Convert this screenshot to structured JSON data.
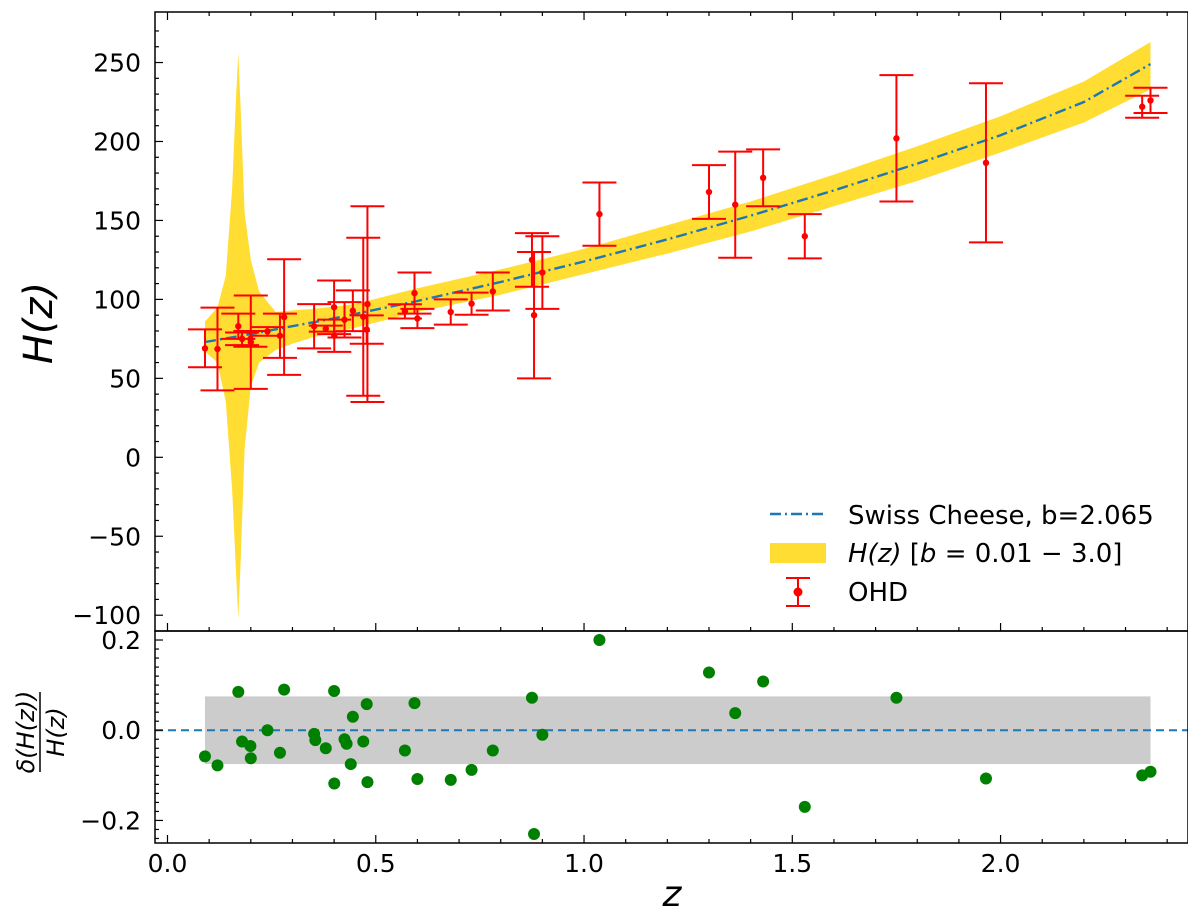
{
  "chart_data": [
    {
      "type": "line",
      "panel": "top",
      "xlabel": "",
      "ylabel": "H(z)",
      "xlim": [
        -0.03,
        2.45
      ],
      "ylim": [
        -110,
        282
      ],
      "yticks": [
        -100,
        -50,
        0,
        50,
        100,
        150,
        200,
        250
      ],
      "ytick_labels": [
        "−100",
        "−50",
        "0",
        "50",
        "100",
        "150",
        "200",
        "250"
      ],
      "legend_position": "bottom-right",
      "legend": [
        {
          "label": "Swiss Cheese, b=2.065",
          "kind": "line"
        },
        {
          "label_parts": [
            "H(z)",
            " [",
            "b",
            " = 0.01 − 3.0]"
          ],
          "kind": "band"
        },
        {
          "label": "OHD",
          "kind": "errorbar"
        }
      ],
      "colors": {
        "model": "#1f77b4",
        "band": "#ffdd33",
        "ohd": "#ff0000"
      },
      "model_line": {
        "name": "Swiss Cheese, b=2.065",
        "x": [
          0.09,
          0.2,
          0.4,
          0.6,
          0.8,
          1.0,
          1.2,
          1.4,
          1.6,
          1.8,
          2.0,
          2.2,
          2.36
        ],
        "y": [
          73,
          78,
          88,
          99,
          111,
          124,
          138,
          153,
          169,
          186,
          204,
          225,
          249
        ]
      },
      "band": {
        "x": [
          0.09,
          0.12,
          0.14,
          0.155,
          0.165,
          0.17,
          0.175,
          0.185,
          0.2,
          0.22,
          0.26,
          0.3,
          0.35,
          0.45,
          0.6,
          0.8,
          1.0,
          1.2,
          1.4,
          1.6,
          1.8,
          2.0,
          2.2,
          2.36
        ],
        "upper": [
          86,
          95,
          115,
          170,
          230,
          256,
          225,
          155,
          125,
          105,
          92,
          93,
          94,
          97,
          107,
          119,
          132,
          147,
          162,
          179,
          197,
          216,
          238,
          263
        ],
        "lower": [
          67,
          60,
          35,
          -20,
          -75,
          -102,
          -70,
          5,
          45,
          60,
          68,
          72,
          76,
          82,
          92,
          103,
          116,
          129,
          143,
          159,
          175,
          193,
          212,
          233
        ]
      },
      "series": [
        {
          "name": "OHD",
          "points": [
            {
              "x": 0.09,
              "y": 69,
              "err": 12
            },
            {
              "x": 0.12,
              "y": 68.6,
              "err": 26.2
            },
            {
              "x": 0.17,
              "y": 83,
              "err": 8
            },
            {
              "x": 0.179,
              "y": 75,
              "err": 4
            },
            {
              "x": 0.199,
              "y": 75,
              "err": 5
            },
            {
              "x": 0.2,
              "y": 72.9,
              "err": 29.6
            },
            {
              "x": 0.24,
              "y": 79.7,
              "err": 2.7
            },
            {
              "x": 0.27,
              "y": 77,
              "err": 14
            },
            {
              "x": 0.28,
              "y": 88.8,
              "err": 36.6
            },
            {
              "x": 0.352,
              "y": 83,
              "err": 14
            },
            {
              "x": 0.38,
              "y": 81.5,
              "err": 1.9
            },
            {
              "x": 0.4,
              "y": 95,
              "err": 17
            },
            {
              "x": 0.4004,
              "y": 77,
              "err": 10.2
            },
            {
              "x": 0.425,
              "y": 87.1,
              "err": 11.2
            },
            {
              "x": 0.445,
              "y": 92.8,
              "err": 12.9
            },
            {
              "x": 0.47,
              "y": 89,
              "err": 50
            },
            {
              "x": 0.4783,
              "y": 80.9,
              "err": 9
            },
            {
              "x": 0.48,
              "y": 97,
              "err": 62
            },
            {
              "x": 0.57,
              "y": 92.4,
              "err": 4.5
            },
            {
              "x": 0.593,
              "y": 104,
              "err": 13
            },
            {
              "x": 0.6,
              "y": 87.9,
              "err": 6.1
            },
            {
              "x": 0.68,
              "y": 92,
              "err": 8
            },
            {
              "x": 0.73,
              "y": 97.3,
              "err": 7
            },
            {
              "x": 0.781,
              "y": 105,
              "err": 12
            },
            {
              "x": 0.875,
              "y": 125,
              "err": 17
            },
            {
              "x": 0.88,
              "y": 90,
              "err": 40
            },
            {
              "x": 0.9,
              "y": 117,
              "err": 23
            },
            {
              "x": 1.037,
              "y": 154,
              "err": 20
            },
            {
              "x": 1.3,
              "y": 168,
              "err": 17
            },
            {
              "x": 1.363,
              "y": 160,
              "err": 33.6
            },
            {
              "x": 1.43,
              "y": 177,
              "err": 18
            },
            {
              "x": 1.53,
              "y": 140,
              "err": 14
            },
            {
              "x": 1.75,
              "y": 202,
              "err": 40
            },
            {
              "x": 1.965,
              "y": 186.5,
              "err": 50.4
            },
            {
              "x": 2.34,
              "y": 222,
              "err": 7
            },
            {
              "x": 2.36,
              "y": 226,
              "err": 8
            }
          ]
        }
      ]
    },
    {
      "type": "scatter",
      "panel": "bottom",
      "xlabel": "z",
      "ylabel": "δ(H(z)) / H(z)",
      "ylabel_parts": {
        "numerator": "δ(H(z))",
        "denominator": "H(z)"
      },
      "xlim": [
        -0.03,
        2.45
      ],
      "ylim": [
        -0.25,
        0.22
      ],
      "xticks": [
        0.0,
        0.5,
        1.0,
        1.5,
        2.0
      ],
      "xtick_labels": [
        "0.0",
        "0.5",
        "1.0",
        "1.5",
        "2.0"
      ],
      "yticks": [
        -0.2,
        0.0,
        0.2
      ],
      "ytick_labels": [
        "−0.2",
        "0.0",
        "0.2"
      ],
      "reference_line": {
        "y": 0.0,
        "style": "dashed",
        "color": "#1f77b4"
      },
      "band": {
        "x": [
          0.09,
          2.36
        ],
        "y": [
          -0.075,
          0.075
        ],
        "color": "#cccccc"
      },
      "colors": {
        "points": "#008000"
      },
      "series": [
        {
          "x": [
            0.09,
            0.12,
            0.17,
            0.179,
            0.199,
            0.2,
            0.24,
            0.27,
            0.28,
            0.352,
            0.355,
            0.38,
            0.4,
            0.4004,
            0.425,
            0.43,
            0.44,
            0.445,
            0.47,
            0.4783,
            0.48,
            0.57,
            0.593,
            0.6,
            0.68,
            0.73,
            0.781,
            0.875,
            0.88,
            0.9,
            1.037,
            1.3,
            1.363,
            1.43,
            1.53,
            1.75,
            1.965,
            2.34,
            2.36
          ],
          "y": [
            -0.058,
            -0.078,
            0.085,
            -0.025,
            -0.035,
            -0.062,
            0.0,
            -0.05,
            0.09,
            -0.008,
            -0.022,
            -0.04,
            0.087,
            -0.118,
            -0.02,
            -0.03,
            -0.075,
            0.03,
            -0.025,
            0.058,
            -0.115,
            -0.045,
            0.06,
            -0.108,
            -0.11,
            -0.088,
            -0.045,
            0.072,
            -0.23,
            -0.01,
            0.2,
            0.128,
            0.038,
            0.108,
            -0.17,
            0.072,
            -0.107,
            -0.1,
            -0.092
          ]
        }
      ]
    }
  ]
}
